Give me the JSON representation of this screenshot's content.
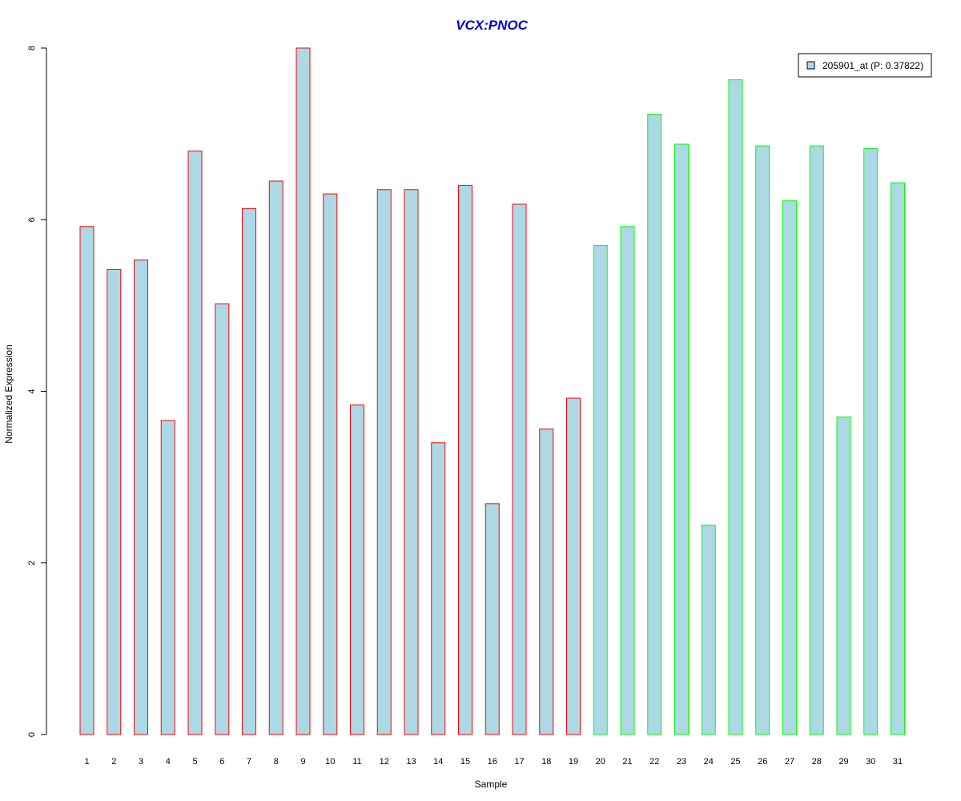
{
  "chart_data": {
    "type": "bar",
    "title": "VCX:PNOC",
    "xlabel": "Sample",
    "ylabel": "Normalized Expression",
    "ylim": [
      0,
      8
    ],
    "yticks": [
      "0",
      "2",
      "4",
      "6",
      "8"
    ],
    "categories": [
      "1",
      "2",
      "3",
      "4",
      "5",
      "6",
      "7",
      "8",
      "9",
      "10",
      "11",
      "12",
      "13",
      "14",
      "15",
      "16",
      "17",
      "18",
      "19",
      "20",
      "21",
      "22",
      "23",
      "24",
      "25",
      "26",
      "27",
      "28",
      "29",
      "30",
      "31"
    ],
    "series": [
      {
        "name": "205901_at (P: 0.37822)",
        "values": [
          5.92,
          5.42,
          5.53,
          3.66,
          6.8,
          5.02,
          6.13,
          6.45,
          8.0,
          6.3,
          3.84,
          6.35,
          6.35,
          3.4,
          6.4,
          2.69,
          6.18,
          3.56,
          3.92,
          5.7,
          5.92,
          7.23,
          6.88,
          2.44,
          7.63,
          6.86,
          6.22,
          6.86,
          3.7,
          6.83,
          6.43
        ]
      }
    ],
    "group_of_sample": [
      1,
      1,
      1,
      1,
      1,
      1,
      1,
      1,
      1,
      1,
      1,
      1,
      1,
      1,
      1,
      1,
      1,
      1,
      1,
      2,
      2,
      2,
      2,
      2,
      2,
      2,
      2,
      2,
      2,
      2,
      2
    ],
    "legend_position": "top-right",
    "grid": false
  },
  "colors": {
    "bar_fill": "#add8e6",
    "group1_border": "#ff0000",
    "group2_border": "#00ff00",
    "title": "#0000cd",
    "axis": "#000000"
  }
}
